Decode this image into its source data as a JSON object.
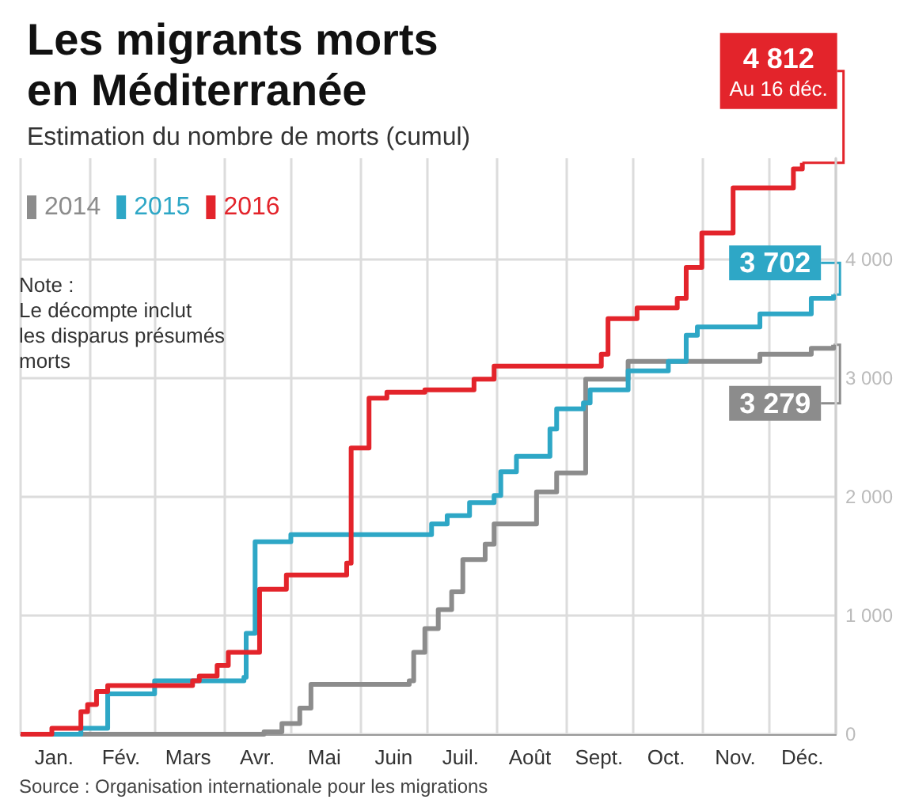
{
  "chart_data": {
    "type": "step",
    "title": "Les migrants morts en Méditerranée",
    "subtitle": "Estimation du nombre de morts (cumul)",
    "xlim": [
      "--01-01",
      "--12-31"
    ],
    "xticks": [
      {
        "value": "--01-01",
        "label": null
      },
      {
        "value": "--01-16",
        "label": "Jan."
      },
      {
        "value": "--02-01",
        "label": null
      },
      {
        "value": "--02-15",
        "label": "Fév."
      },
      {
        "value": "--03-01",
        "label": null
      },
      {
        "value": "--03-16",
        "label": "Mars"
      },
      {
        "value": "--04-01",
        "label": null
      },
      {
        "value": "--04-16",
        "label": "Avr."
      },
      {
        "value": "--05-01",
        "label": null
      },
      {
        "value": "--05-16",
        "label": "Mai"
      },
      {
        "value": "--06-01",
        "label": null
      },
      {
        "value": "--06-16",
        "label": "Juin"
      },
      {
        "value": "--07-01",
        "label": null
      },
      {
        "value": "--07-16",
        "label": "Juil."
      },
      {
        "value": "--08-01",
        "label": null
      },
      {
        "value": "--08-16",
        "label": "Août"
      },
      {
        "value": "--09-01",
        "label": null
      },
      {
        "value": "--09-16",
        "label": "Sept."
      },
      {
        "value": "--10-01",
        "label": null
      },
      {
        "value": "--10-16",
        "label": "Oct."
      },
      {
        "value": "--11-01",
        "label": null
      },
      {
        "value": "--11-16",
        "label": "Nov."
      },
      {
        "value": "--12-01",
        "label": null
      },
      {
        "value": "--12-16",
        "label": "Déc."
      },
      {
        "value": "--12-31",
        "label": null
      }
    ],
    "ylim": [
      0,
      4850
    ],
    "yticks": [
      0,
      {
        "value": 1000,
        "label": "1 000"
      },
      {
        "value": 2000,
        "label": "2 000"
      },
      {
        "value": 3000,
        "label": "3 000"
      },
      {
        "value": 4000,
        "label": "4 000"
      }
    ],
    "grid": true,
    "legend": "top left",
    "marker": "none",
    "line_style": "solid",
    "series": [
      {
        "name": "2014",
        "color": "#8c8c8c",
        "x": [
          "--01-01",
          "--04-19",
          "--04-27",
          "--05-05",
          "--05-10",
          "--06-23",
          "--06-25",
          "--06-30",
          "--07-06",
          "--07-12",
          "--07-17",
          "--07-27",
          "--07-31",
          "--08-19",
          "--08-28",
          "--09-10",
          "--09-29",
          "--11-27",
          "--12-20",
          "--12-30"
        ],
        "values": [
          0,
          20,
          90,
          220,
          420,
          450,
          690,
          890,
          1050,
          1200,
          1470,
          1600,
          1770,
          2040,
          2200,
          2990,
          3140,
          3200,
          3250,
          3279
        ]
      },
      {
        "name": "2015",
        "color": "#2ea7c6",
        "x": [
          "--01-01",
          "--01-28",
          "--02-09",
          "--03-01",
          "--04-10",
          "--04-11",
          "--04-15",
          "--05-01",
          "--07-03",
          "--07-10",
          "--07-20",
          "--07-31",
          "--08-03",
          "--08-10",
          "--08-25",
          "--08-28",
          "--09-09",
          "--09-12",
          "--09-29",
          "--10-17",
          "--10-25",
          "--10-30",
          "--11-27",
          "--12-20",
          "--12-30"
        ],
        "values": [
          0,
          50,
          340,
          450,
          480,
          850,
          1620,
          1680,
          1770,
          1840,
          1950,
          2010,
          2210,
          2340,
          2570,
          2740,
          2790,
          2900,
          3060,
          3140,
          3360,
          3430,
          3540,
          3670,
          3702
        ]
      },
      {
        "name": "2016",
        "color": "#e3242b",
        "x": [
          "--01-01",
          "--01-15",
          "--01-28",
          "--01-31",
          "--02-04",
          "--02-09",
          "--03-18",
          "--03-21",
          "--03-29",
          "--04-03",
          "--04-17",
          "--04-29",
          "--05-26",
          "--05-28",
          "--06-05",
          "--06-13",
          "--06-30",
          "--07-22",
          "--07-31",
          "--09-17",
          "--09-20",
          "--10-03",
          "--10-21",
          "--10-25",
          "--11-01",
          "--11-15",
          "--12-12",
          "--12-16"
        ],
        "values": [
          0,
          50,
          190,
          250,
          360,
          410,
          450,
          490,
          580,
          690,
          1220,
          1340,
          1440,
          2410,
          2830,
          2880,
          2900,
          2990,
          3100,
          3200,
          3500,
          3590,
          3670,
          3930,
          4220,
          4600,
          4760,
          4812
        ]
      }
    ],
    "annotations": [
      "Note :\nLe décompte inclut\nles disparus présumés\nmorts",
      "Source : Organisation internationale pour les migrations",
      {
        "text": "4 812\nAu 16 déc.",
        "x": "--12-16",
        "y": 4812
      },
      {
        "text": "3 702",
        "x": "--12-30",
        "y": 3702
      },
      {
        "text": "3 279",
        "x": "--12-30",
        "y": 3279
      }
    ]
  }
}
